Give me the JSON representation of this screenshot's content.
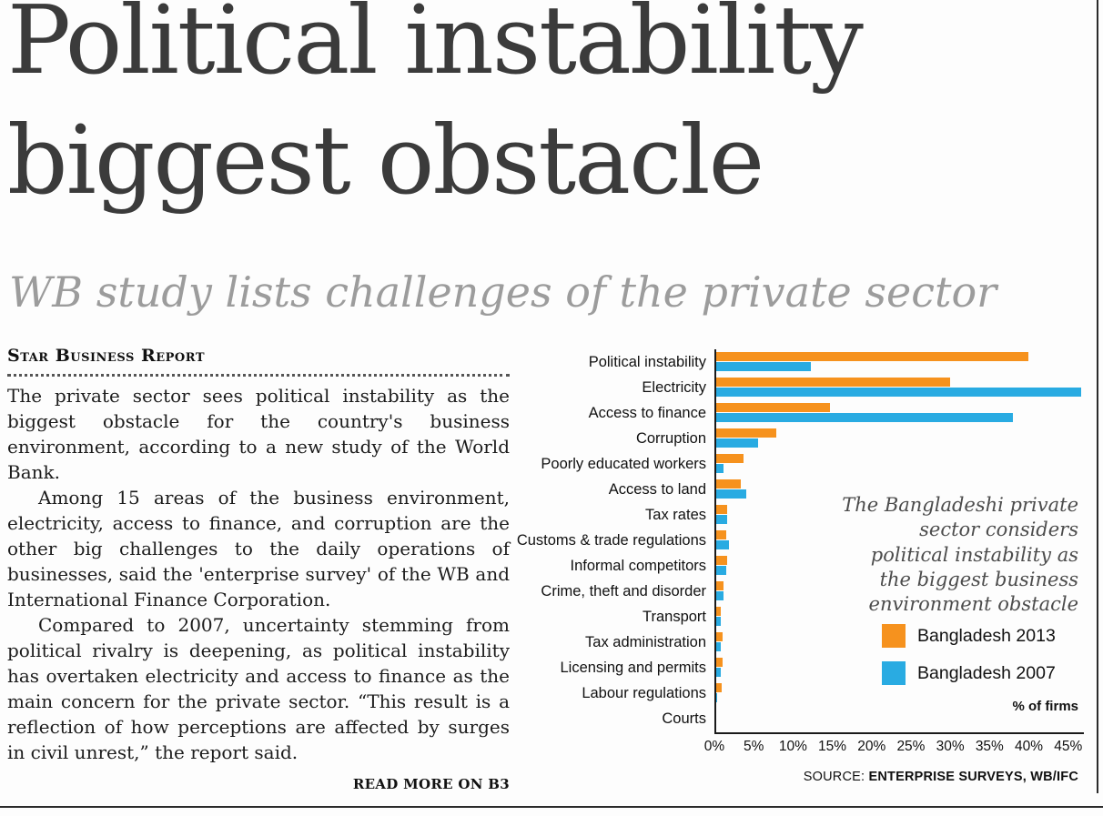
{
  "headline": {
    "line1": "Political instability",
    "line2": "biggest obstacle"
  },
  "subheadline": "WB study lists challenges of the private sector",
  "article": {
    "byline": "Star Business Report",
    "paragraphs": [
      "The private sector sees political instability as the biggest obstacle for the country's business environment, according to a new study of the World Bank.",
      "Among 15 areas of the business environment, electricity, access to finance, and corruption are the other big challenges to the daily operations of businesses, said the 'enterprise survey' of the WB and International Finance Corporation.",
      "Compared to 2007, uncertainty stemming from political rivalry is deepening, as political instability has overtaken electricity and access to finance as the main concern for the private sector. “This result is a reflection of how perceptions are affected by surges in civil unrest,” the report said."
    ],
    "read_more": "READ MORE ON B3"
  },
  "chart": {
    "annotation": "The Bangladeshi private sector considers political instability as the biggest business environment obstacle",
    "legend": [
      {
        "label": "Bangladesh 2013",
        "color": "#F6921E"
      },
      {
        "label": "Bangladesh 2007",
        "color": "#29ABE2"
      }
    ],
    "unit_label": "% of firms",
    "source_prefix": "SOURCE:",
    "source": "ENTERPRISE SURVEYS, WB/IFC"
  },
  "chart_data": {
    "type": "bar",
    "orientation": "horizontal",
    "title": "",
    "xlabel": "% of firms",
    "ylabel": "",
    "xlim": [
      0,
      47
    ],
    "x_ticks": [
      "0%",
      "5%",
      "10%",
      "15%",
      "20%",
      "25%",
      "30%",
      "35%",
      "40%",
      "45%"
    ],
    "grid": false,
    "legend_position": "right",
    "categories": [
      "Political instability",
      "Electricity",
      "Access to finance",
      "Corruption",
      "Poorly educated workers",
      "Access to land",
      "Tax rates",
      "Customs & trade regulations",
      "Informal competitors",
      "Crime, theft and disorder",
      "Transport",
      "Tax administration",
      "Licensing and permits",
      "Labour regulations",
      "Courts"
    ],
    "series": [
      {
        "name": "Bangladesh 2013",
        "color": "#F6921E",
        "values": [
          39.4,
          29.5,
          14.5,
          7.8,
          3.6,
          3.3,
          1.6,
          1.5,
          1.6,
          1.1,
          0.8,
          1.0,
          1.0,
          0.9,
          0.2
        ]
      },
      {
        "name": "Bangladesh 2007",
        "color": "#29ABE2",
        "values": [
          12.1,
          46.0,
          37.4,
          5.5,
          1.1,
          4.0,
          1.6,
          1.8,
          1.5,
          1.1,
          0.8,
          0.8,
          0.8,
          0.3,
          0.2
        ]
      }
    ]
  }
}
